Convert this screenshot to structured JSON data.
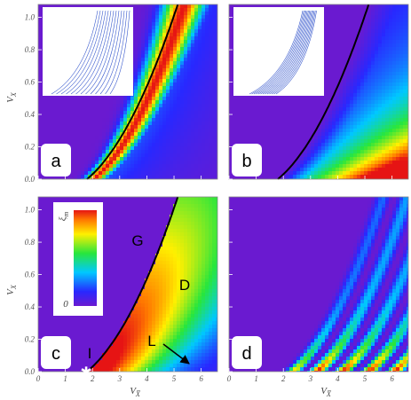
{
  "chart_data": [
    {
      "type": "heatmap",
      "label": "a",
      "xlim": [
        0,
        6.6
      ],
      "ylim": [
        0,
        1.08
      ],
      "xticks": [
        0,
        1,
        2,
        3,
        4,
        5,
        6
      ],
      "yticks": [
        {
          "value": 0,
          "label": "0.0"
        },
        {
          "value": 0.2,
          "label": "0.2"
        },
        {
          "value": 0.4,
          "label": "0.4"
        },
        {
          "value": 0.6,
          "label": "0.6"
        },
        {
          "value": 0.8,
          "label": "0.8"
        },
        {
          "value": 1,
          "label": "1.0"
        }
      ],
      "ylabel": {
        "main": "V",
        "sub": "X"
      }
    },
    {
      "type": "heatmap",
      "label": "b",
      "xlim": [
        0,
        6.6
      ],
      "ylim": [
        0,
        1.08
      ],
      "xticks": [
        0,
        1,
        2,
        3,
        4,
        5,
        6
      ],
      "yticks": [
        0,
        0.2,
        0.4,
        0.6,
        0.8,
        1
      ]
    },
    {
      "type": "heatmap",
      "label": "c",
      "xlim": [
        0,
        6.6
      ],
      "ylim": [
        0,
        1.08
      ],
      "xticks": [
        0,
        1,
        2,
        3,
        4,
        5,
        6
      ],
      "yticks": [
        {
          "value": 0,
          "label": "0.0"
        },
        {
          "value": 0.2,
          "label": "0.2"
        },
        {
          "value": 0.4,
          "label": "0.4"
        },
        {
          "value": 0.6,
          "label": "0.6"
        },
        {
          "value": 0.8,
          "label": "0.8"
        },
        {
          "value": 1,
          "label": "1.0"
        }
      ],
      "xlabel": {
        "main": "V",
        "sub": "X̅"
      },
      "ylabel": {
        "main": "V",
        "sub": "X"
      },
      "colorbar": {
        "label": {
          "main": "ξ",
          "sub": "m"
        },
        "min": 0
      },
      "annotations": [
        "G",
        "D",
        "L",
        "I"
      ]
    },
    {
      "type": "heatmap",
      "label": "d",
      "xlim": [
        0,
        6.6
      ],
      "ylim": [
        0,
        1.08
      ],
      "xticks": [
        0,
        1,
        2,
        3,
        4,
        5,
        6
      ],
      "yticks": [
        0,
        0.2,
        0.4,
        0.6,
        0.8,
        1
      ],
      "xlabel": {
        "main": "V",
        "sub": "X̅"
      }
    }
  ]
}
